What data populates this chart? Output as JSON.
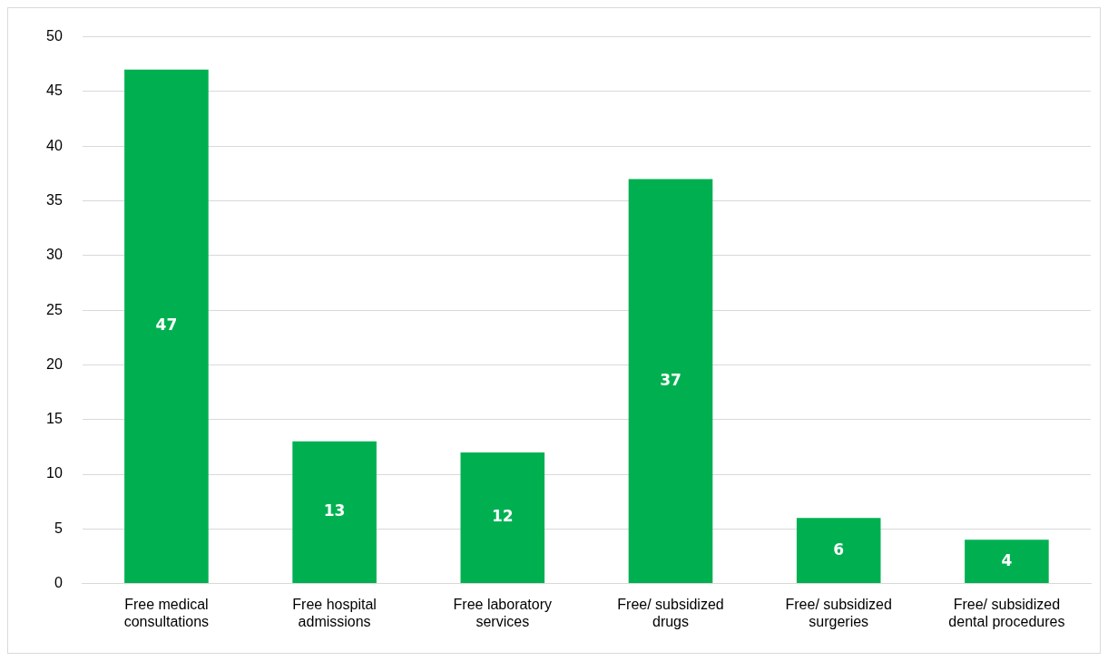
{
  "chart_data": {
    "type": "bar",
    "categories": [
      "Free medical consultations",
      "Free hospital admissions",
      "Free laboratory services",
      "Free/ subsidized drugs",
      "Free/ subsidized surgeries",
      "Free/ subsidized dental procedures"
    ],
    "values": [
      47,
      13,
      12,
      37,
      6,
      4
    ],
    "color": "#00b050",
    "ylim": [
      0,
      50
    ],
    "yticks": [
      0,
      5,
      10,
      15,
      20,
      25,
      30,
      35,
      40,
      45,
      50
    ],
    "grid": "y",
    "data_labels": true,
    "legend": false
  }
}
